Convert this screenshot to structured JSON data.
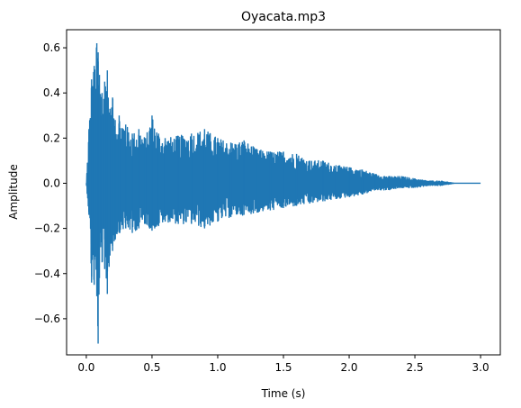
{
  "chart_data": {
    "type": "line",
    "title": "Oyacata.mp3",
    "xlabel": "Time (s)",
    "ylabel": "Amplitude",
    "xlim": [
      -0.15,
      3.15
    ],
    "ylim": [
      -0.76,
      0.68
    ],
    "xticks": [
      0.0,
      0.5,
      1.0,
      1.5,
      2.0,
      2.5,
      3.0
    ],
    "xtick_labels": [
      "0.0",
      "0.5",
      "1.0",
      "1.5",
      "2.0",
      "2.5",
      "3.0"
    ],
    "yticks": [
      -0.6,
      -0.4,
      -0.2,
      0.0,
      0.2,
      0.4,
      0.6
    ],
    "ytick_labels": [
      "−0.6",
      "−0.4",
      "−0.2",
      "0.0",
      "0.2",
      "0.4",
      "0.6"
    ],
    "grid": false,
    "series": [
      {
        "color": "#1f77b4",
        "x": [
          0.0,
          0.02,
          0.04,
          0.06,
          0.08,
          0.09,
          0.1,
          0.12,
          0.14,
          0.16,
          0.18,
          0.2,
          0.22,
          0.25,
          0.3,
          0.35,
          0.4,
          0.45,
          0.5,
          0.55,
          0.6,
          0.7,
          0.8,
          0.9,
          1.0,
          1.1,
          1.2,
          1.3,
          1.4,
          1.5,
          1.6,
          1.7,
          1.8,
          1.9,
          2.0,
          2.1,
          2.2,
          2.3,
          2.4,
          2.5,
          2.6,
          2.7,
          2.8,
          3.0
        ],
        "y_max": [
          0.0,
          0.24,
          0.46,
          0.52,
          0.62,
          0.58,
          0.48,
          0.4,
          0.45,
          0.5,
          0.33,
          0.38,
          0.28,
          0.3,
          0.26,
          0.22,
          0.24,
          0.2,
          0.3,
          0.22,
          0.2,
          0.21,
          0.22,
          0.24,
          0.2,
          0.18,
          0.19,
          0.15,
          0.14,
          0.14,
          0.13,
          0.1,
          0.1,
          0.08,
          0.07,
          0.06,
          0.04,
          0.03,
          0.03,
          0.02,
          0.01,
          0.01,
          0.0,
          0.0
        ],
        "y_min": [
          0.0,
          -0.14,
          -0.44,
          -0.45,
          -0.5,
          -0.71,
          -0.42,
          -0.35,
          -0.38,
          -0.49,
          -0.32,
          -0.3,
          -0.25,
          -0.22,
          -0.2,
          -0.22,
          -0.2,
          -0.18,
          -0.21,
          -0.19,
          -0.17,
          -0.18,
          -0.18,
          -0.2,
          -0.17,
          -0.15,
          -0.14,
          -0.13,
          -0.12,
          -0.11,
          -0.1,
          -0.09,
          -0.08,
          -0.07,
          -0.06,
          -0.05,
          -0.03,
          -0.03,
          -0.02,
          -0.02,
          -0.01,
          -0.01,
          0.0,
          0.0
        ]
      }
    ]
  }
}
